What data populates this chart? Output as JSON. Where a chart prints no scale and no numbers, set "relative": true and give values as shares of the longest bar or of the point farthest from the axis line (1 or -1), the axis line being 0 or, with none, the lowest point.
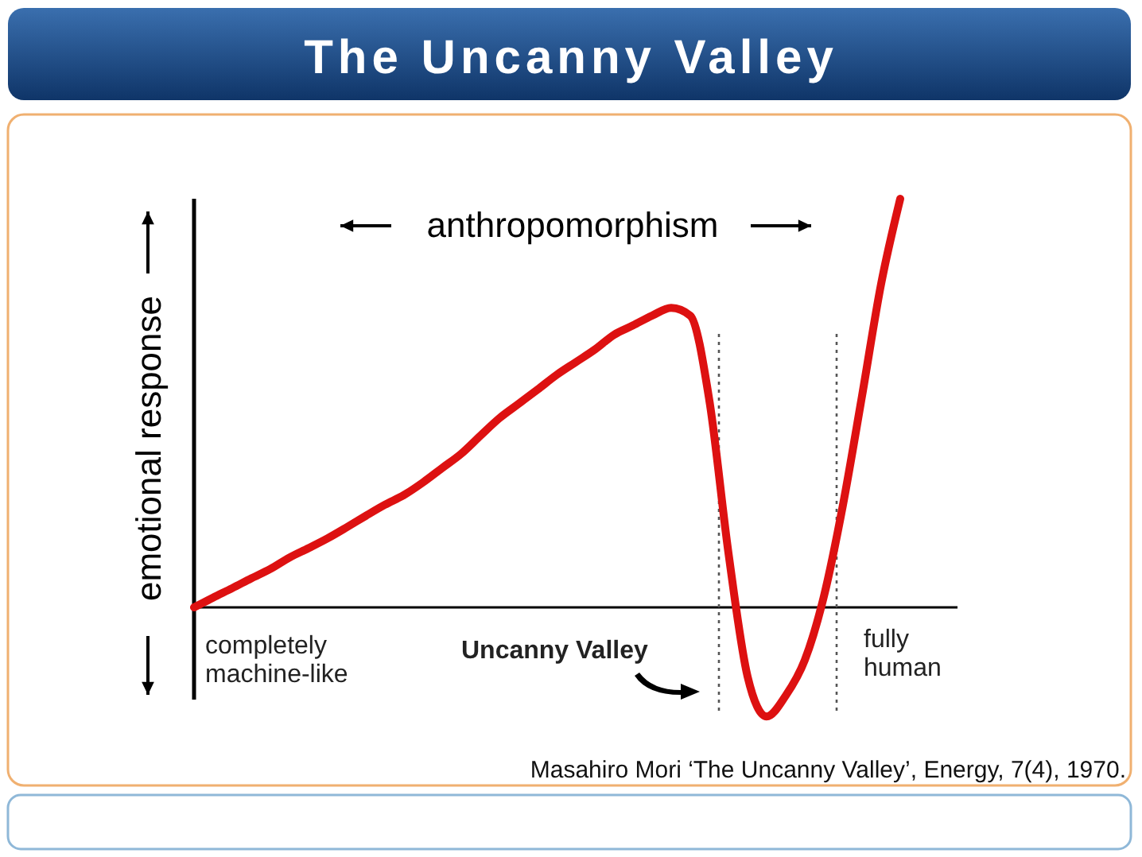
{
  "chart_data": {
    "type": "line",
    "title": "The Uncanny Valley",
    "xlabel": "anthropomorphism",
    "ylabel": "emotional response",
    "relative": true,
    "line_style": "solid",
    "marker": "none",
    "categories": [
      null,
      null,
      null,
      null,
      null,
      null,
      null,
      null,
      null,
      null,
      null,
      null,
      null,
      null,
      null,
      null,
      null,
      null,
      null,
      null,
      null,
      null,
      null,
      null,
      null,
      null,
      null,
      null,
      null,
      null,
      null,
      null,
      null,
      null,
      null,
      null,
      null,
      null,
      null,
      null,
      null
    ],
    "series": [
      {
        "color": "#dd1111",
        "values": [
          0,
          0.024,
          0.047,
          0.071,
          0.094,
          0.122,
          0.145,
          0.169,
          0.196,
          0.224,
          0.251,
          0.275,
          0.306,
          0.341,
          0.376,
          0.42,
          0.463,
          0.498,
          0.533,
          0.569,
          0.6,
          0.631,
          0.667,
          0.69,
          0.714,
          0.733,
          0.714,
          0.506,
          0.133,
          -0.169,
          -0.267,
          -0.216,
          -0.129,
          0.027,
          0.251,
          0.518,
          0.792,
          1,
          null,
          null,
          null
        ]
      }
    ],
    "annotations": [
      "completely machine-like",
      "Uncanny Valley",
      "fully human",
      "Masahiro Mori ‘The Uncanny Valley’, Energy, 7(4), 1970."
    ]
  }
}
